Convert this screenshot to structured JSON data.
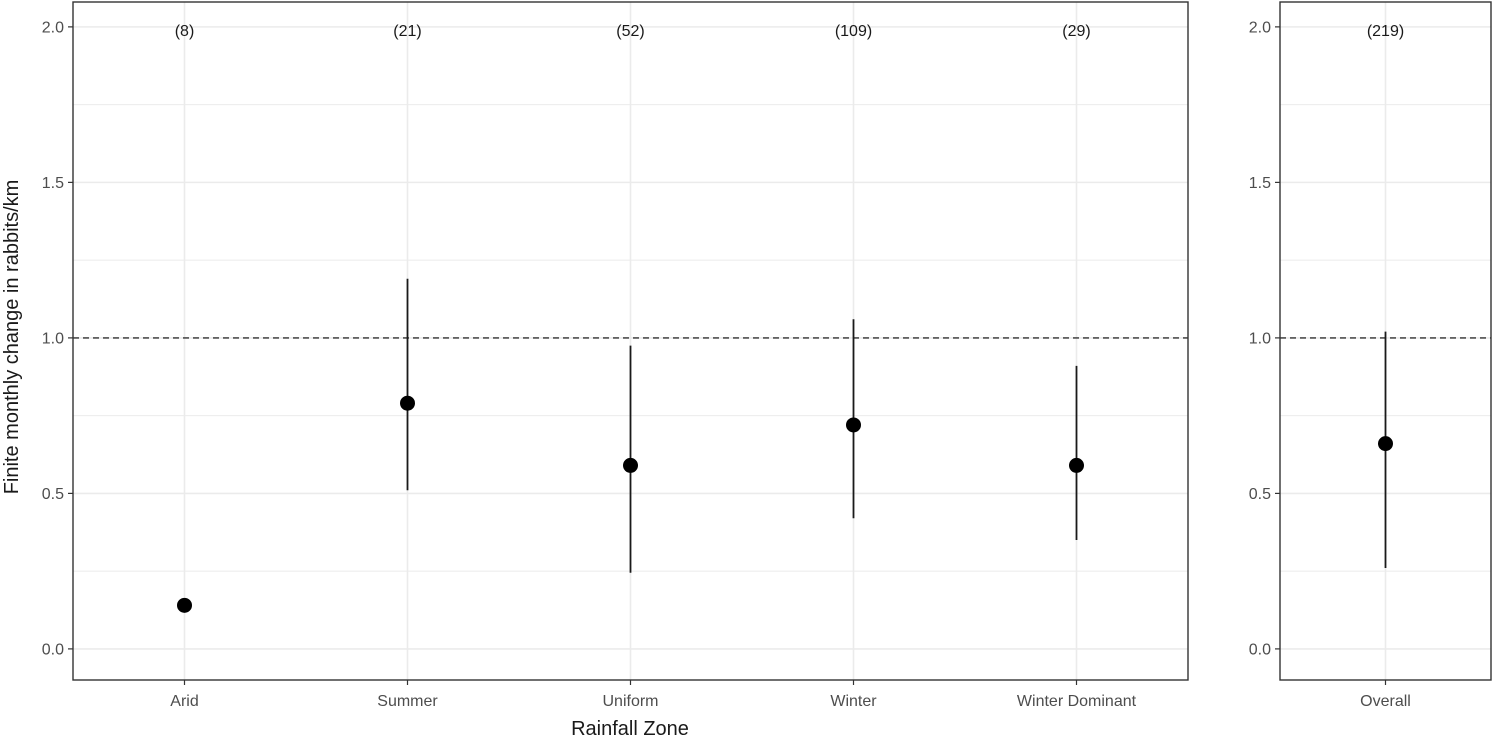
{
  "chart_data": {
    "type": "scatter",
    "subtype": "point-with-error-bars",
    "xlabel": "Rainfall Zone",
    "ylabel": "Finite monthly change in rabbits/km",
    "ylim": [
      -0.1,
      2.08
    ],
    "yticks": [
      "0.0",
      "0.5",
      "1.0",
      "1.5",
      "2.0"
    ],
    "reference_line": {
      "y": 1.0,
      "style": "dashed"
    },
    "grid": true,
    "colors": {
      "point": "#000000",
      "grid": "#ebebeb",
      "border": "#333333",
      "reference": "#333333"
    },
    "panels": [
      {
        "categories": [
          "Arid",
          "Summer",
          "Uniform",
          "Winter",
          "Winter Dominant"
        ],
        "counts": [
          "(8)",
          "(21)",
          "(52)",
          "(109)",
          "(29)"
        ],
        "values": [
          0.14,
          0.79,
          0.59,
          0.72,
          0.59
        ],
        "lower": [
          null,
          0.51,
          0.245,
          0.42,
          0.35
        ],
        "upper": [
          null,
          1.19,
          0.975,
          1.06,
          0.91
        ]
      },
      {
        "categories": [
          "Overall"
        ],
        "counts": [
          "(219)"
        ],
        "values": [
          0.66
        ],
        "lower": [
          0.26
        ],
        "upper": [
          1.02
        ]
      }
    ]
  }
}
